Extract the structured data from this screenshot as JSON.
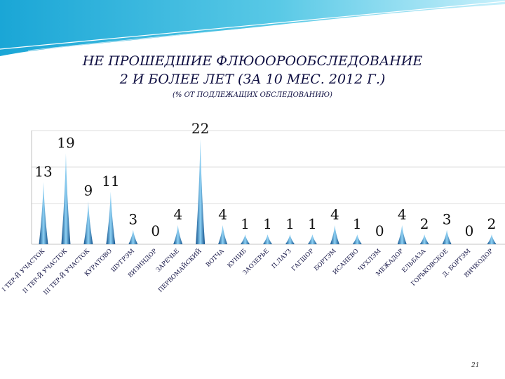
{
  "header": {
    "title_line1": "НЕ ПРОШЕДШИЕ ФЛЮООРООБСЛЕДОВАНИЕ",
    "title_line2": "2 И БОЛЕЕ ЛЕТ (ЗА 10 МЕС. 2012 Г.)",
    "subtitle": "(% ОТ ПОДЛЕЖАЩИХ ОБСЛЕДОВАНИЮ)"
  },
  "page_number": "21",
  "colors": {
    "spike_dark": "#0f4f8a",
    "spike_light": "#8fd2f5",
    "banner": "#3cb3d8"
  },
  "chart_data": {
    "type": "bar",
    "title": "НЕ ПРОШЕДШИЕ ФЛЮООРООБСЛЕДОВАНИЕ 2 И БОЛЕЕ ЛЕТ (ЗА 10 МЕС. 2012 Г.)",
    "subtitle": "(% ОТ ПОДЛЕЖАЩИХ ОБСЛЕДОВАНИЮ)",
    "xlabel": "",
    "ylabel": "",
    "grid": true,
    "categories": [
      "I ТЕР-Й УЧАСТОК",
      "II ТЕР-Й УЧАСТОК",
      "III ТЕР-Й УЧАСТОК",
      "КУРАТОВО",
      "ШУГРЭМ",
      "ВИЗИНДОР",
      "ЗАРЕЧЬЕ",
      "ПЕРВОМАЙСКИЙ",
      "ВОТЧА",
      "КУНИБ",
      "ЗАОЗЕРЬЕ",
      "П.ЛАУЗ",
      "ГАГШОР",
      "БОРТЭМ",
      "ИСАНЕВО",
      "ЧУХЛЭМ",
      "МЕЖАДОР",
      "ЕЛЬБАЗА",
      "ГОРЬКОВСКОЕ",
      "Д. БОРТЭМ",
      "ВИЧКОДОР"
    ],
    "values": [
      13,
      19,
      9,
      11,
      3,
      0,
      4,
      22,
      4,
      1,
      1,
      1,
      1,
      4,
      1,
      0,
      4,
      2,
      3,
      0,
      2
    ],
    "value_labels": [
      "13",
      "19",
      "9",
      "11",
      "3",
      "0",
      "4",
      "22",
      "4",
      "1",
      "1",
      "1",
      "1",
      "4",
      "1",
      "0",
      "4",
      "2",
      "3",
      "0",
      "2"
    ]
  }
}
